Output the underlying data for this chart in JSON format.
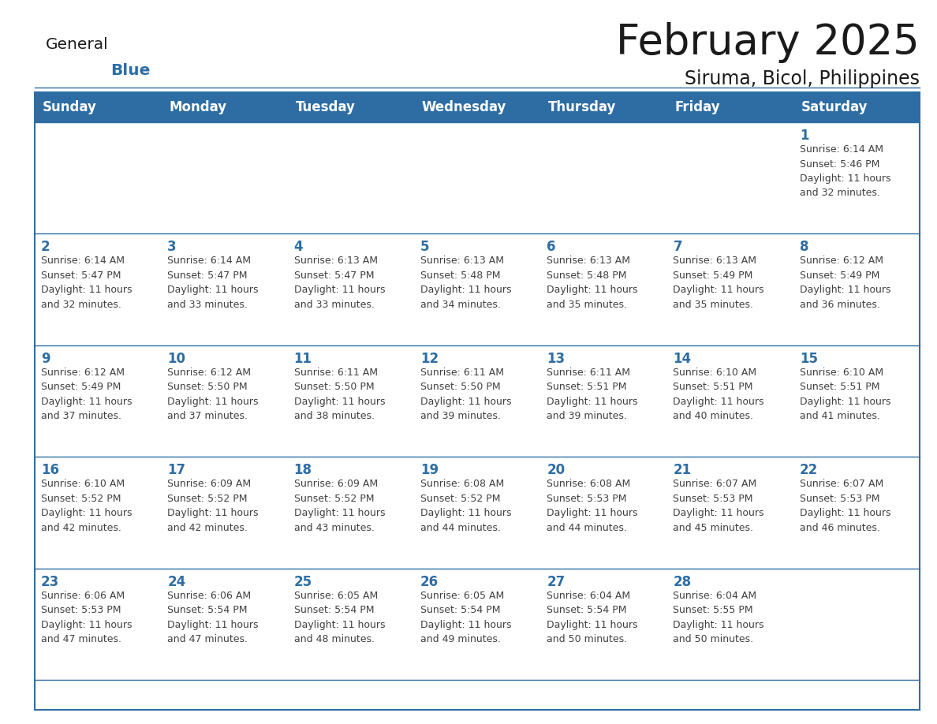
{
  "title": "February 2025",
  "subtitle": "Siruma, Bicol, Philippines",
  "header_bg_color": "#2E6DA4",
  "header_text_color": "#FFFFFF",
  "cell_bg_color": "#FFFFFF",
  "cell_alt_bg_color": "#F2F2F2",
  "border_color": "#2E6DA4",
  "row_separator_color": "#2E6DA4",
  "day_number_color": "#2E6DA4",
  "cell_text_color": "#404040",
  "days_of_week": [
    "Sunday",
    "Monday",
    "Tuesday",
    "Wednesday",
    "Thursday",
    "Friday",
    "Saturday"
  ],
  "weeks": [
    [
      {
        "day": 0,
        "text": ""
      },
      {
        "day": 0,
        "text": ""
      },
      {
        "day": 0,
        "text": ""
      },
      {
        "day": 0,
        "text": ""
      },
      {
        "day": 0,
        "text": ""
      },
      {
        "day": 0,
        "text": ""
      },
      {
        "day": 1,
        "text": "Sunrise: 6:14 AM\nSunset: 5:46 PM\nDaylight: 11 hours\nand 32 minutes."
      }
    ],
    [
      {
        "day": 2,
        "text": "Sunrise: 6:14 AM\nSunset: 5:47 PM\nDaylight: 11 hours\nand 32 minutes."
      },
      {
        "day": 3,
        "text": "Sunrise: 6:14 AM\nSunset: 5:47 PM\nDaylight: 11 hours\nand 33 minutes."
      },
      {
        "day": 4,
        "text": "Sunrise: 6:13 AM\nSunset: 5:47 PM\nDaylight: 11 hours\nand 33 minutes."
      },
      {
        "day": 5,
        "text": "Sunrise: 6:13 AM\nSunset: 5:48 PM\nDaylight: 11 hours\nand 34 minutes."
      },
      {
        "day": 6,
        "text": "Sunrise: 6:13 AM\nSunset: 5:48 PM\nDaylight: 11 hours\nand 35 minutes."
      },
      {
        "day": 7,
        "text": "Sunrise: 6:13 AM\nSunset: 5:49 PM\nDaylight: 11 hours\nand 35 minutes."
      },
      {
        "day": 8,
        "text": "Sunrise: 6:12 AM\nSunset: 5:49 PM\nDaylight: 11 hours\nand 36 minutes."
      }
    ],
    [
      {
        "day": 9,
        "text": "Sunrise: 6:12 AM\nSunset: 5:49 PM\nDaylight: 11 hours\nand 37 minutes."
      },
      {
        "day": 10,
        "text": "Sunrise: 6:12 AM\nSunset: 5:50 PM\nDaylight: 11 hours\nand 37 minutes."
      },
      {
        "day": 11,
        "text": "Sunrise: 6:11 AM\nSunset: 5:50 PM\nDaylight: 11 hours\nand 38 minutes."
      },
      {
        "day": 12,
        "text": "Sunrise: 6:11 AM\nSunset: 5:50 PM\nDaylight: 11 hours\nand 39 minutes."
      },
      {
        "day": 13,
        "text": "Sunrise: 6:11 AM\nSunset: 5:51 PM\nDaylight: 11 hours\nand 39 minutes."
      },
      {
        "day": 14,
        "text": "Sunrise: 6:10 AM\nSunset: 5:51 PM\nDaylight: 11 hours\nand 40 minutes."
      },
      {
        "day": 15,
        "text": "Sunrise: 6:10 AM\nSunset: 5:51 PM\nDaylight: 11 hours\nand 41 minutes."
      }
    ],
    [
      {
        "day": 16,
        "text": "Sunrise: 6:10 AM\nSunset: 5:52 PM\nDaylight: 11 hours\nand 42 minutes."
      },
      {
        "day": 17,
        "text": "Sunrise: 6:09 AM\nSunset: 5:52 PM\nDaylight: 11 hours\nand 42 minutes."
      },
      {
        "day": 18,
        "text": "Sunrise: 6:09 AM\nSunset: 5:52 PM\nDaylight: 11 hours\nand 43 minutes."
      },
      {
        "day": 19,
        "text": "Sunrise: 6:08 AM\nSunset: 5:52 PM\nDaylight: 11 hours\nand 44 minutes."
      },
      {
        "day": 20,
        "text": "Sunrise: 6:08 AM\nSunset: 5:53 PM\nDaylight: 11 hours\nand 44 minutes."
      },
      {
        "day": 21,
        "text": "Sunrise: 6:07 AM\nSunset: 5:53 PM\nDaylight: 11 hours\nand 45 minutes."
      },
      {
        "day": 22,
        "text": "Sunrise: 6:07 AM\nSunset: 5:53 PM\nDaylight: 11 hours\nand 46 minutes."
      }
    ],
    [
      {
        "day": 23,
        "text": "Sunrise: 6:06 AM\nSunset: 5:53 PM\nDaylight: 11 hours\nand 47 minutes."
      },
      {
        "day": 24,
        "text": "Sunrise: 6:06 AM\nSunset: 5:54 PM\nDaylight: 11 hours\nand 47 minutes."
      },
      {
        "day": 25,
        "text": "Sunrise: 6:05 AM\nSunset: 5:54 PM\nDaylight: 11 hours\nand 48 minutes."
      },
      {
        "day": 26,
        "text": "Sunrise: 6:05 AM\nSunset: 5:54 PM\nDaylight: 11 hours\nand 49 minutes."
      },
      {
        "day": 27,
        "text": "Sunrise: 6:04 AM\nSunset: 5:54 PM\nDaylight: 11 hours\nand 50 minutes."
      },
      {
        "day": 28,
        "text": "Sunrise: 6:04 AM\nSunset: 5:55 PM\nDaylight: 11 hours\nand 50 minutes."
      },
      {
        "day": 0,
        "text": ""
      }
    ]
  ],
  "logo_general_color": "#1A1A1A",
  "logo_blue_color": "#2E6DA4",
  "logo_triangle_color": "#2E6DA4",
  "title_fontsize": 38,
  "subtitle_fontsize": 17,
  "header_fontsize": 12,
  "day_num_fontsize": 12,
  "cell_text_fontsize": 9
}
